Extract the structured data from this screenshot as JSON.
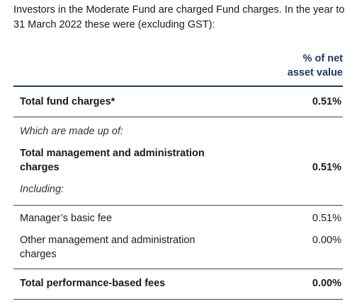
{
  "intro": {
    "text": "Investors in the Moderate Fund are charged Fund charges. In the year to 31 March 2022 these were (excluding GST):"
  },
  "table": {
    "column_header_line1": "% of net",
    "column_header_line2": "asset value",
    "rows": [
      {
        "label": "Total fund charges*",
        "value": "0.51%"
      },
      {
        "label": "Which are made up of:",
        "value": ""
      },
      {
        "label_line1": "Total management and administration",
        "label_line2": "charges",
        "value": "0.51%"
      },
      {
        "label": "Including:",
        "value": ""
      },
      {
        "label": "Manager’s basic fee",
        "value": "0.51%"
      },
      {
        "label_line1": "Other management and administration",
        "label_line2": "charges",
        "value": "0.00%"
      },
      {
        "label": "Total performance-based fees",
        "value": "0.00%"
      }
    ]
  }
}
